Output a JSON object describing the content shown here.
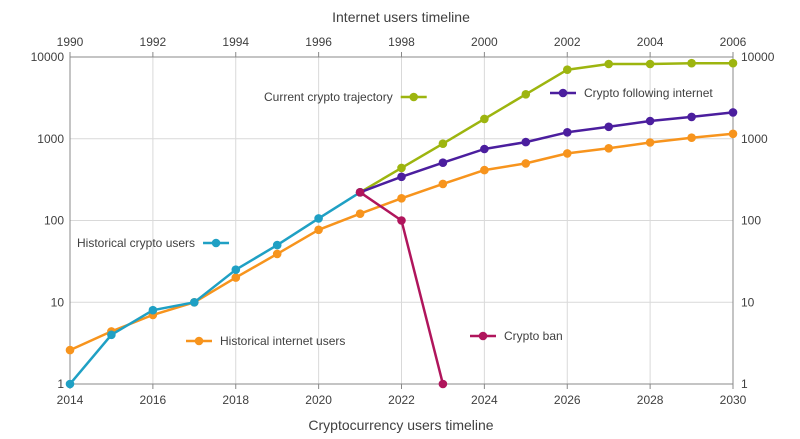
{
  "chart_data": {
    "type": "line",
    "scale": "log",
    "top_axis": {
      "title": "Internet users timeline",
      "range": [
        1990,
        2006
      ],
      "ticks": [
        "1990",
        "1992",
        "1994",
        "1996",
        "1998",
        "2000",
        "2002",
        "2004",
        "2006"
      ]
    },
    "bottom_axis": {
      "title": "Cryptocurrency users timeline",
      "range": [
        2014,
        2030
      ],
      "ticks": [
        "2014",
        "2016",
        "2018",
        "2020",
        "2022",
        "2024",
        "2026",
        "2028",
        "2030"
      ]
    },
    "y_axis": {
      "range": [
        1,
        10000
      ],
      "ticks": [
        "1",
        "10",
        "100",
        "1000",
        "10000"
      ],
      "tick_values": [
        1,
        10,
        100,
        1000,
        10000
      ]
    },
    "series": [
      {
        "name": "Historical internet users",
        "color": "#F7941D",
        "x": [
          2014,
          2015,
          2016,
          2017,
          2018,
          2019,
          2020,
          2021,
          2022,
          2023,
          2024,
          2025,
          2026,
          2027,
          2028,
          2029,
          2030
        ],
        "values": [
          2.6,
          4.4,
          7,
          10,
          20,
          39,
          77,
          121,
          187,
          280,
          413,
          500,
          662,
          765,
          900,
          1030,
          1150
        ]
      },
      {
        "name": "Historical crypto users",
        "color": "#1FA0C4",
        "x": [
          2014,
          2015,
          2016,
          2017,
          2018,
          2019,
          2020,
          2021
        ],
        "values": [
          1,
          4,
          8,
          10,
          25,
          50,
          106,
          221
        ]
      },
      {
        "name": "Current crypto trajectory",
        "color": "#9DB50F",
        "x": [
          2021,
          2022,
          2023,
          2024,
          2025,
          2026,
          2027,
          2028,
          2029,
          2030
        ],
        "values": [
          221,
          440,
          870,
          1750,
          3500,
          7000,
          8200,
          8200,
          8400,
          8400
        ]
      },
      {
        "name": "Crypto following internet",
        "color": "#4B1E9E",
        "x": [
          2021,
          2022,
          2023,
          2024,
          2025,
          2026,
          2027,
          2028,
          2029,
          2030
        ],
        "values": [
          221,
          342,
          510,
          750,
          910,
          1200,
          1400,
          1650,
          1850,
          2100
        ]
      },
      {
        "name": "Crypto ban",
        "color": "#B0155C",
        "x": [
          2021,
          2022,
          2023
        ],
        "values": [
          221,
          100,
          1
        ]
      }
    ],
    "legend": [
      {
        "label": "Current crypto trajectory",
        "color": "#9DB50F",
        "placement": "top-center",
        "marker": "right"
      },
      {
        "label": "Crypto following internet",
        "color": "#4B1E9E",
        "placement": "top-right",
        "marker": "left"
      },
      {
        "label": "Historical crypto users",
        "color": "#1FA0C4",
        "placement": "middle-left",
        "marker": "right"
      },
      {
        "label": "Historical internet users",
        "color": "#F7941D",
        "placement": "bottom-left",
        "marker": "left"
      },
      {
        "label": "Crypto ban",
        "color": "#B0155C",
        "placement": "bottom-center",
        "marker": "left"
      }
    ],
    "grid": true
  }
}
